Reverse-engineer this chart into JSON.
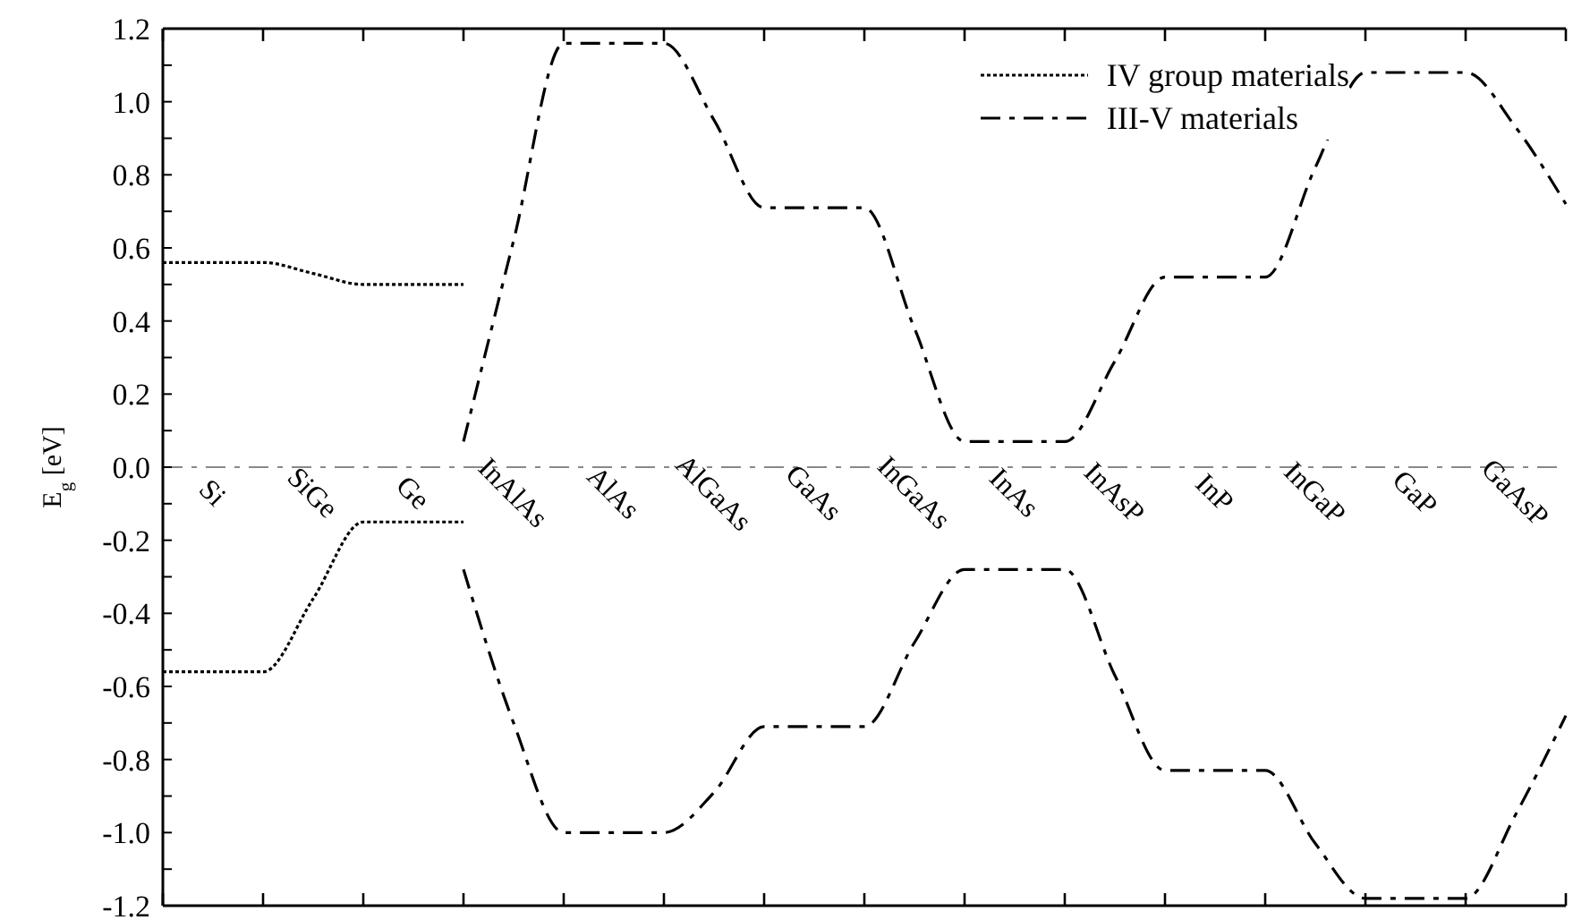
{
  "chart_data": {
    "type": "line",
    "ylabel": "E$_{g}$ [eV]",
    "categories": [
      null,
      "Si",
      null,
      "SiGe",
      null,
      "Ge",
      null,
      "InAlAs",
      null,
      "AlAs",
      null,
      "AlGaAs",
      null,
      "GaAs",
      null,
      "InGaAs",
      null,
      "InAs",
      null,
      "InAsP",
      null,
      "InP",
      null,
      "InGaP",
      null,
      "GaP",
      null,
      "GaAsP",
      null
    ],
    "series": [
      {
        "name": "IV group materials",
        "color": "#000000",
        "line_style": "dotted",
        "values": [
          0.56,
          0.56,
          0.56,
          0.53,
          0.5,
          0.5,
          0.5,
          null,
          null,
          null,
          null,
          null,
          null,
          null,
          null,
          null,
          null,
          null,
          null,
          null,
          null,
          null,
          null,
          null,
          null,
          null,
          null,
          null,
          null
        ]
      },
      {
        "color": "#000000",
        "line_style": "dotted",
        "values": [
          -0.56,
          -0.56,
          -0.56,
          -0.36,
          -0.15,
          -0.15,
          -0.15,
          null,
          null,
          null,
          null,
          null,
          null,
          null,
          null,
          null,
          null,
          null,
          null,
          null,
          null,
          null,
          null,
          null,
          null,
          null,
          null,
          null,
          null
        ]
      },
      {
        "name": "III-V materials",
        "color": "#000000",
        "line_style": "dashed",
        "values": [
          null,
          null,
          null,
          null,
          null,
          null,
          0.07,
          0.62,
          1.16,
          1.16,
          1.16,
          0.95,
          0.71,
          0.71,
          0.71,
          0.38,
          0.07,
          0.07,
          0.07,
          0.29,
          0.52,
          0.52,
          0.52,
          0.82,
          1.08,
          1.08,
          1.08,
          0.93,
          0.72
        ]
      },
      {
        "color": "#000000",
        "line_style": "dashed",
        "values": [
          null,
          null,
          null,
          null,
          null,
          null,
          -0.28,
          -0.7,
          -1.0,
          -1.0,
          -1.0,
          -0.89,
          -0.71,
          -0.71,
          -0.71,
          -0.48,
          -0.28,
          -0.28,
          -0.28,
          -0.57,
          -0.83,
          -0.83,
          -0.83,
          -1.03,
          -1.18,
          -1.18,
          -1.18,
          -0.95,
          -0.68
        ]
      }
    ],
    "ylim": [
      -1.2,
      1.2
    ],
    "yticks": [
      {
        "value": -1.2,
        "label": "-1.2"
      },
      {
        "value": -1.1,
        "label": null
      },
      {
        "value": -1.0,
        "label": "-1.0"
      },
      {
        "value": -0.9,
        "label": null
      },
      {
        "value": -0.8,
        "label": "-0.8"
      },
      {
        "value": -0.7,
        "label": null
      },
      {
        "value": -0.6,
        "label": "-0.6"
      },
      {
        "value": -0.5,
        "label": null
      },
      {
        "value": -0.4,
        "label": "-0.4"
      },
      {
        "value": -0.3,
        "label": null
      },
      {
        "value": -0.2,
        "label": "-0.2"
      },
      {
        "value": -0.1,
        "label": null
      },
      {
        "value": 0,
        "label": "0.0"
      },
      {
        "value": 0.1,
        "label": null
      },
      {
        "value": 0.2,
        "label": "0.2"
      },
      {
        "value": 0.3,
        "label": null
      },
      {
        "value": 0.4,
        "label": "0.4"
      },
      {
        "value": 0.5,
        "label": null
      },
      {
        "value": 0.6,
        "label": "0.6"
      },
      {
        "value": 0.7,
        "label": null
      },
      {
        "value": 0.8,
        "label": "0.8"
      },
      {
        "value": 0.9,
        "label": null
      },
      {
        "value": 1.0,
        "label": "1.0"
      },
      {
        "value": 1.1,
        "label": null
      },
      {
        "value": 1.2,
        "label": "1.2"
      }
    ],
    "ref_lines": [
      {
        "axis": "y",
        "value": 0,
        "color": "#888888",
        "line_style": "dashed"
      }
    ],
    "grid": false,
    "legend": "top right"
  }
}
